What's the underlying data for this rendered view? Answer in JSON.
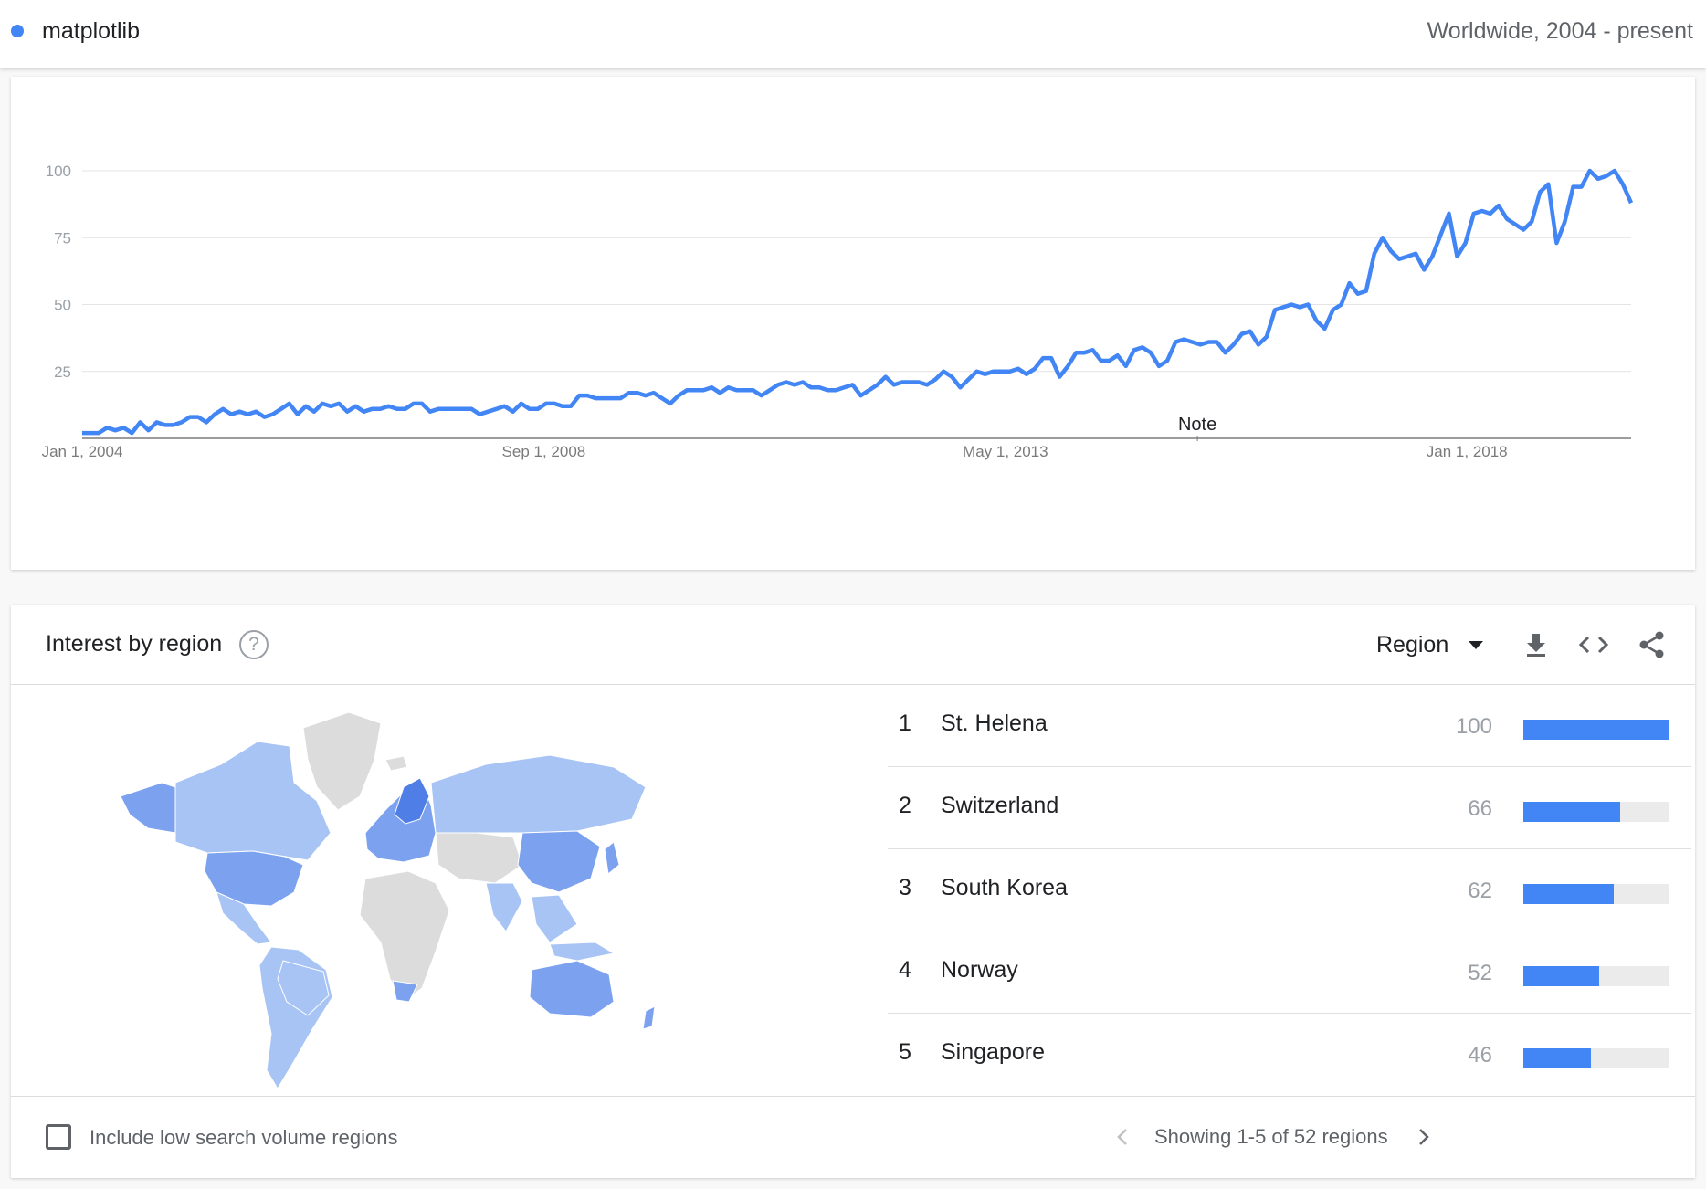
{
  "header": {
    "term": "matplotlib",
    "term_color": "#4285f4",
    "scope": "Worldwide, 2004 - present"
  },
  "chart_data": {
    "type": "line",
    "x_tick_labels": [
      "Jan 1, 2004",
      "Sep 1, 2008",
      "May 1, 2013",
      "Jan 1, 2018"
    ],
    "y_ticks": [
      25,
      50,
      75,
      100
    ],
    "ylim": [
      0,
      100
    ],
    "x_start": "2004-01",
    "x_end": "2020-09",
    "annotation": "Note",
    "annotation_x": "2016-01",
    "grid": true,
    "legend": "none",
    "series": [
      {
        "color": "#4285f4",
        "values": [
          2,
          2,
          2,
          4,
          3,
          4,
          2,
          6,
          3,
          6,
          5,
          5,
          6,
          8,
          8,
          6,
          9,
          11,
          9,
          10,
          9,
          10,
          8,
          9,
          11,
          13,
          9,
          12,
          10,
          13,
          12,
          13,
          10,
          12,
          10,
          11,
          11,
          12,
          11,
          11,
          13,
          13,
          10,
          11,
          11,
          11,
          11,
          11,
          9,
          10,
          11,
          12,
          10,
          13,
          11,
          11,
          13,
          13,
          12,
          12,
          16,
          16,
          15,
          15,
          15,
          15,
          17,
          17,
          16,
          17,
          15,
          13,
          16,
          18,
          18,
          18,
          19,
          17,
          19,
          18,
          18,
          18,
          16,
          18,
          20,
          21,
          20,
          21,
          19,
          19,
          18,
          18,
          19,
          20,
          16,
          18,
          20,
          23,
          20,
          21,
          21,
          21,
          20,
          22,
          25,
          23,
          19,
          22,
          25,
          24,
          25,
          25,
          25,
          26,
          24,
          26,
          30,
          30,
          23,
          27,
          32,
          32,
          33,
          29,
          29,
          31,
          27,
          33,
          34,
          32,
          27,
          29,
          36,
          37,
          36,
          35,
          36,
          36,
          32,
          35,
          39,
          40,
          35,
          38,
          48,
          49,
          50,
          49,
          50,
          44,
          41,
          48,
          50,
          58,
          54,
          55,
          69,
          75,
          70,
          67,
          68,
          69,
          63,
          68,
          76,
          84,
          68,
          73,
          84,
          85,
          84,
          87,
          82,
          80,
          78,
          81,
          92,
          95,
          73,
          81,
          94,
          94,
          100,
          97,
          98,
          100,
          95,
          88
        ]
      }
    ]
  },
  "region": {
    "title": "Interest by region",
    "help_icon": "help-circle-icon",
    "selector_label": "Region",
    "tools": [
      "download-icon",
      "embed-code-icon",
      "share-icon"
    ],
    "rankings": [
      {
        "rank": "1",
        "name": "St. Helena",
        "value": "100",
        "fraction": 1.0
      },
      {
        "rank": "2",
        "name": "Switzerland",
        "value": "66",
        "fraction": 0.66
      },
      {
        "rank": "3",
        "name": "South Korea",
        "value": "62",
        "fraction": 0.62
      },
      {
        "rank": "4",
        "name": "Norway",
        "value": "52",
        "fraction": 0.52
      },
      {
        "rank": "5",
        "name": "Singapore",
        "value": "46",
        "fraction": 0.46
      }
    ],
    "map_colors": {
      "low": "#a8c4f5",
      "mid": "#7ca2ef",
      "high": "#4f7fe6",
      "none": "#dcdcdc"
    }
  },
  "footer": {
    "checkbox_label": "Include low search volume regions",
    "pager_text": "Showing 1-5 of 52 regions"
  }
}
